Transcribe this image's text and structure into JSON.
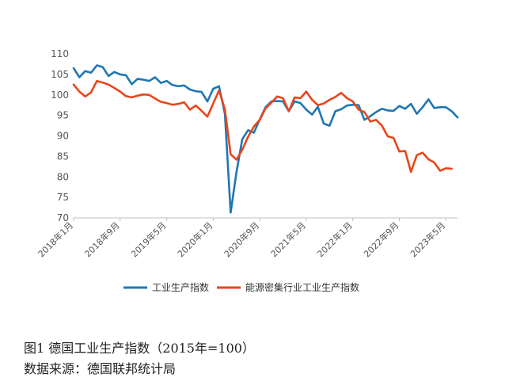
{
  "caption": {
    "figure": "图1   德国工业生产指数（2015年=100）",
    "source": "数据来源：德国联邦统计局"
  },
  "chart_data": {
    "type": "line",
    "title": "",
    "xlabel": "",
    "ylabel": "",
    "ylim": [
      70,
      110
    ],
    "yticks": [
      70,
      75,
      80,
      85,
      90,
      95,
      100,
      105,
      110
    ],
    "x_tick_labels": [
      {
        "label": "2018年1月",
        "index": 0
      },
      {
        "label": "2018年9月",
        "index": 8
      },
      {
        "label": "2019年5月",
        "index": 16
      },
      {
        "label": "2020年1月",
        "index": 24
      },
      {
        "label": "2020年9月",
        "index": 32
      },
      {
        "label": "2021年5月",
        "index": 40
      },
      {
        "label": "2022年1月",
        "index": 48
      },
      {
        "label": "2022年9月",
        "index": 56
      },
      {
        "label": "2023年5月",
        "index": 64
      }
    ],
    "legend_position": "bottom",
    "grid": false,
    "series": [
      {
        "name": "工业生产指数",
        "color": "#1f77b4",
        "values": [
          106.5,
          104.3,
          105.8,
          105.4,
          107.2,
          106.8,
          104.6,
          105.6,
          105.0,
          104.8,
          102.6,
          103.9,
          103.7,
          103.4,
          104.3,
          102.9,
          103.4,
          102.4,
          102.1,
          102.3,
          101.3,
          100.9,
          100.7,
          98.4,
          101.5,
          102.1,
          95.4,
          71.3,
          81.2,
          89.2,
          91.4,
          90.8,
          94.0,
          97.0,
          98.4,
          98.5,
          98.4,
          96.0,
          98.4,
          98.0,
          96.4,
          95.2,
          97.1,
          93.0,
          92.5,
          96.0,
          96.5,
          97.4,
          97.6,
          97.5,
          93.9,
          94.8,
          95.8,
          96.6,
          96.2,
          96.1,
          97.3,
          96.6,
          97.8,
          95.4,
          97.0,
          98.9,
          96.8,
          97.0,
          97.0,
          96.0,
          94.5
        ]
      },
      {
        "name": "能源密集行业工业生产指数",
        "color": "#e8461b",
        "values": [
          102.5,
          100.8,
          99.6,
          100.6,
          103.4,
          103.0,
          102.5,
          101.7,
          100.8,
          99.7,
          99.4,
          99.8,
          100.1,
          100.0,
          99.1,
          98.3,
          98.0,
          97.6,
          97.8,
          98.2,
          96.4,
          97.4,
          96.1,
          94.7,
          97.9,
          101.1,
          96.5,
          85.5,
          84.2,
          86.6,
          89.8,
          92.3,
          93.9,
          96.7,
          98.1,
          99.6,
          99.2,
          96.0,
          99.4,
          99.2,
          100.8,
          98.8,
          97.5,
          97.9,
          98.8,
          99.5,
          100.5,
          99.2,
          98.4,
          96.4,
          95.8,
          93.5,
          93.9,
          92.5,
          89.9,
          89.5,
          86.2,
          86.3,
          81.2,
          85.3,
          85.9,
          84.3,
          83.5,
          81.5,
          82.1,
          82.0
        ]
      }
    ]
  }
}
